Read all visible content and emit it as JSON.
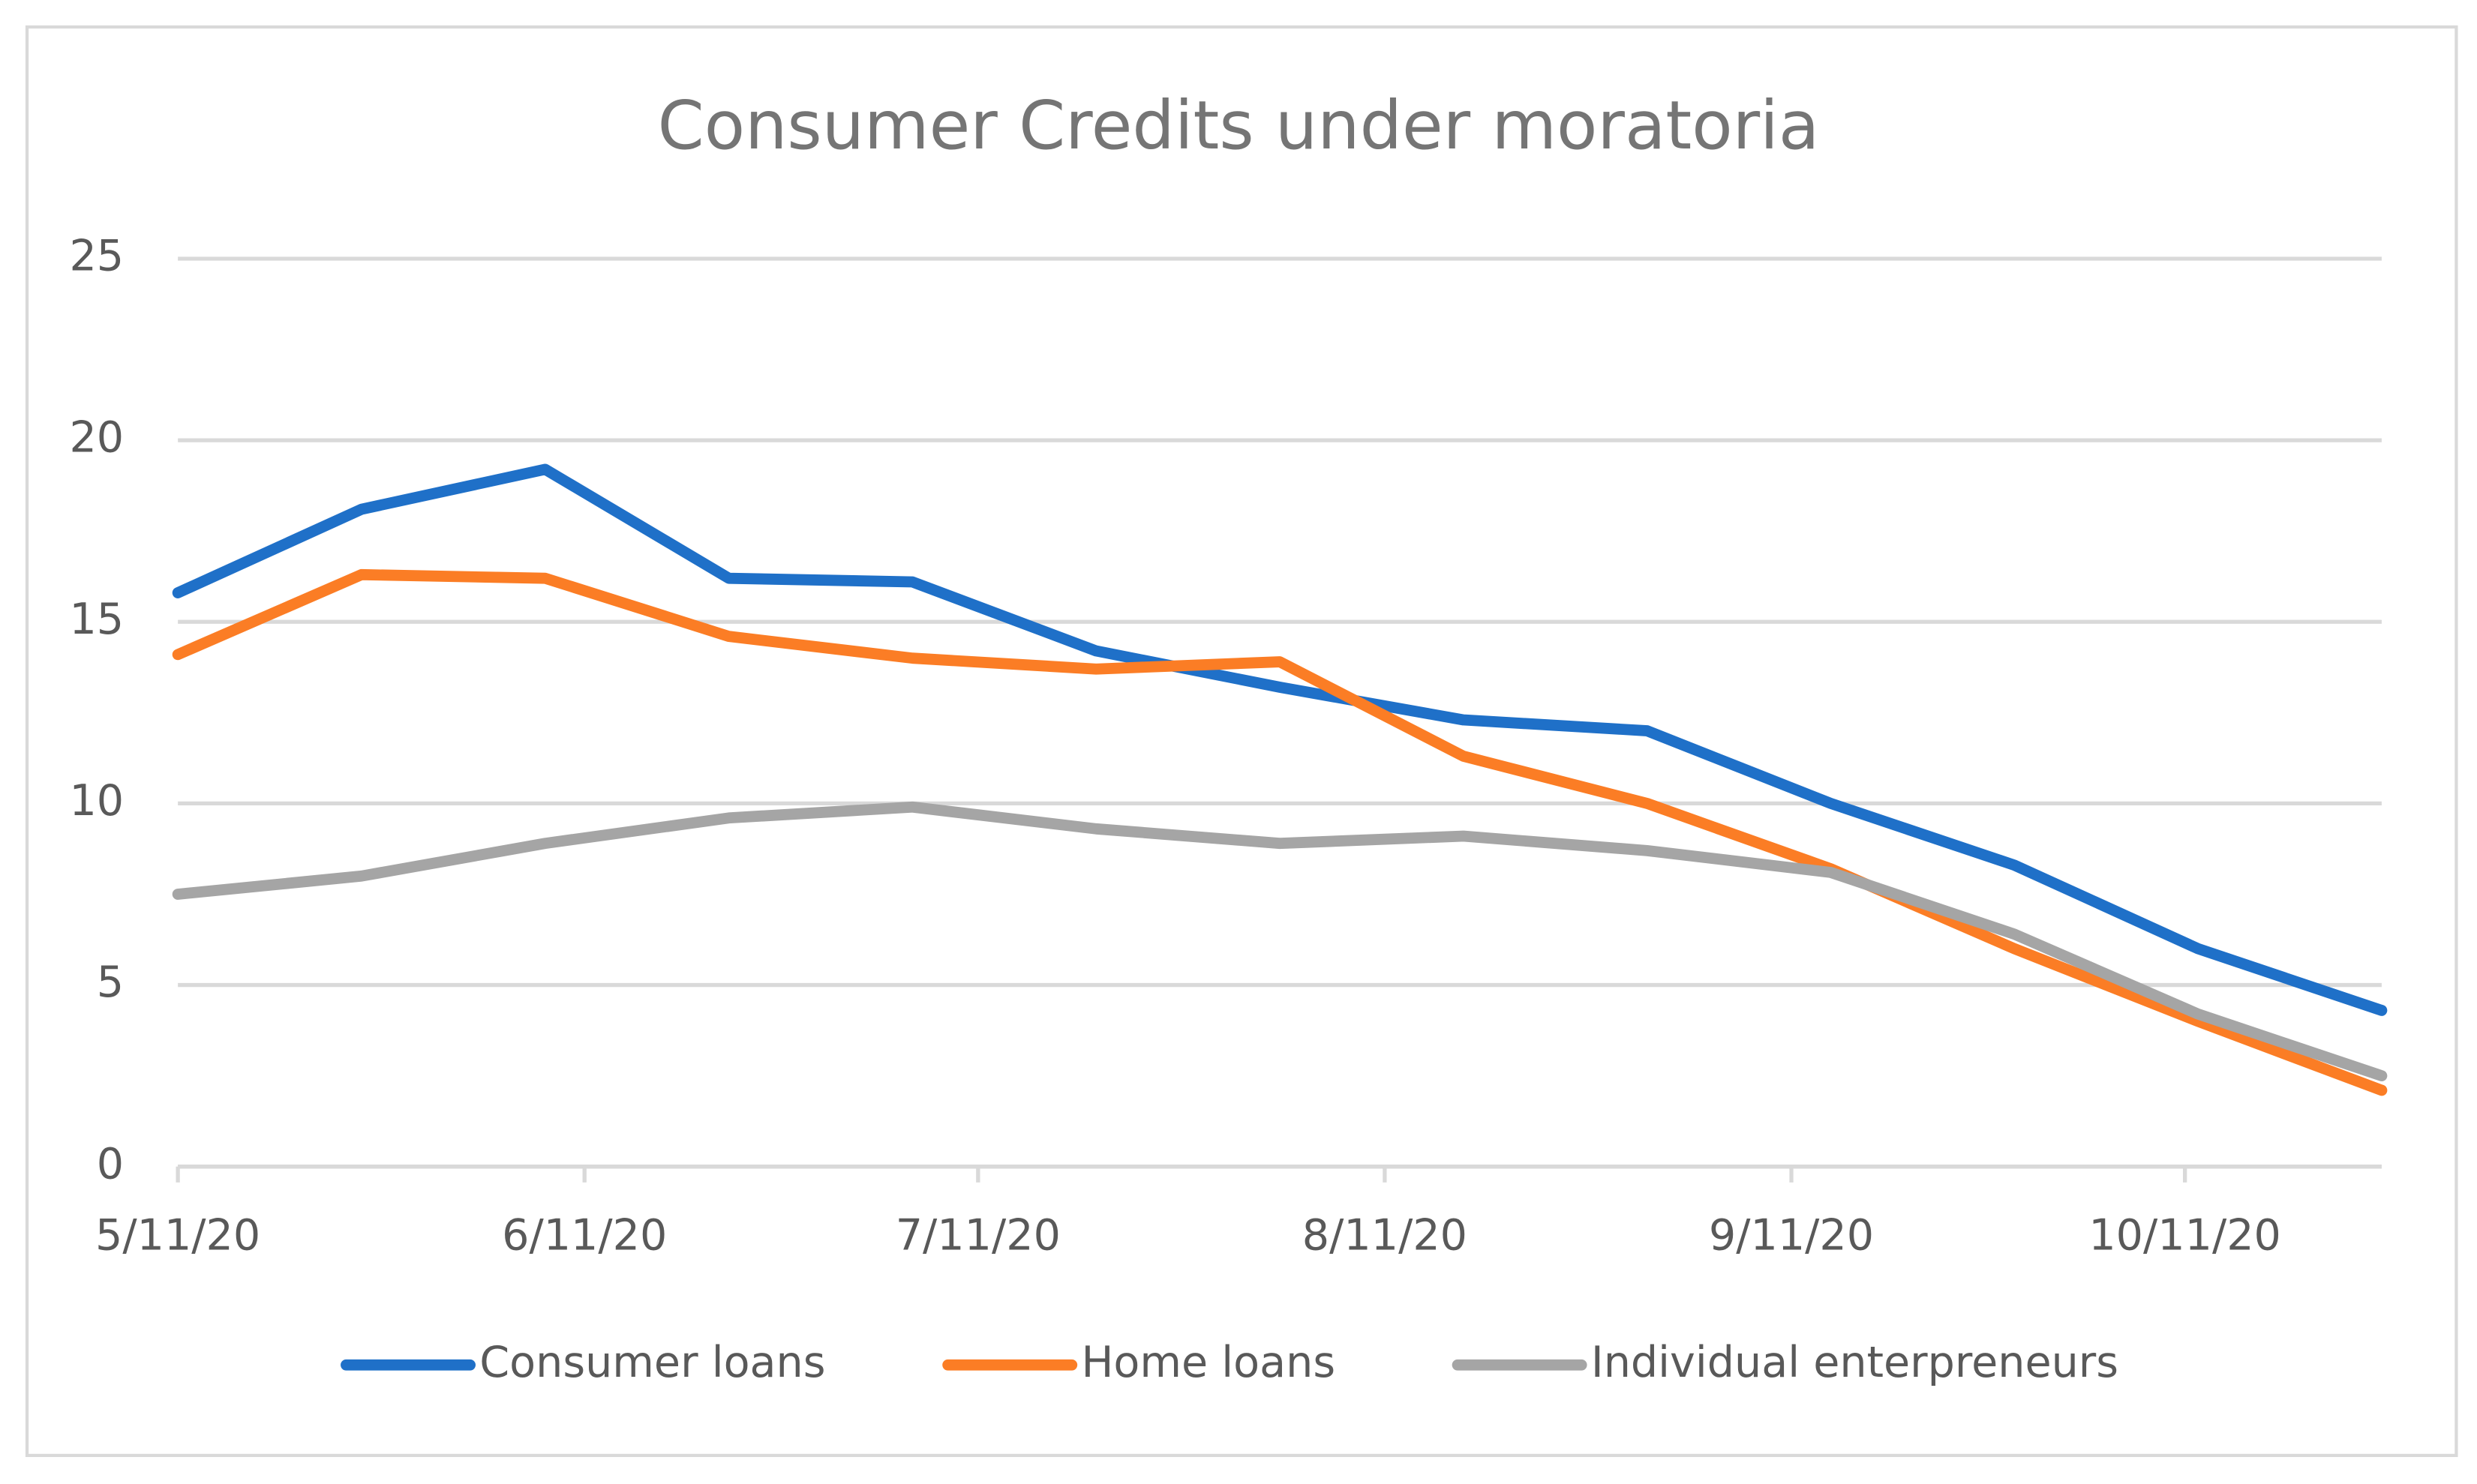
{
  "chart_data": {
    "type": "line",
    "title": "Consumer Credits under moratoria",
    "x": [
      "2020-05-11",
      "2020-05-25",
      "2020-06-08",
      "2020-06-22",
      "2020-07-06",
      "2020-07-20",
      "2020-08-03",
      "2020-08-17",
      "2020-08-31",
      "2020-09-14",
      "2020-09-28",
      "2020-10-12",
      "2020-10-26"
    ],
    "series": [
      {
        "name": "Consumer loans",
        "color": "#1f70c8",
        "values": [
          15.8,
          18.1,
          19.2,
          16.2,
          16.1,
          14.2,
          13.2,
          12.3,
          12.0,
          10.0,
          8.3,
          6.0,
          4.3
        ]
      },
      {
        "name": "Home loans",
        "color": "#fb7d25",
        "values": [
          14.1,
          16.3,
          16.2,
          14.6,
          14.0,
          13.7,
          13.9,
          11.3,
          10.0,
          8.2,
          6.0,
          4.0,
          2.1
        ]
      },
      {
        "name": "Individual enterpreneurs",
        "color": "#a5a5a5",
        "values": [
          7.5,
          8.0,
          8.9,
          9.6,
          9.9,
          9.3,
          8.9,
          9.1,
          8.7,
          8.1,
          6.4,
          4.2,
          2.5
        ]
      }
    ],
    "xlim": [
      "2020-05-11",
      "2020-10-26"
    ],
    "xticks": [
      {
        "value": "2020-05-11",
        "label": "5/11/20"
      },
      {
        "value": "2020-06-11",
        "label": "6/11/20"
      },
      {
        "value": "2020-07-11",
        "label": "7/11/20"
      },
      {
        "value": "2020-08-11",
        "label": "8/11/20"
      },
      {
        "value": "2020-09-11",
        "label": "9/11/20"
      },
      {
        "value": "2020-10-11",
        "label": "10/11/20"
      }
    ],
    "ylim": [
      0,
      25
    ],
    "yticks": [
      0,
      5,
      10,
      15,
      20,
      25
    ],
    "grid": true,
    "legend": "bottom"
  }
}
